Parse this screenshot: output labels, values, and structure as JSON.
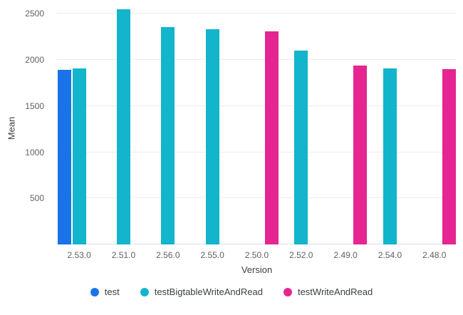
{
  "chart_data": {
    "type": "bar",
    "title": "",
    "xlabel": "Version",
    "ylabel": "Mean",
    "categories": [
      "2.53.0",
      "2.51.0",
      "2.56.0",
      "2.55.0",
      "2.50.0",
      "2.52.0",
      "2.49.0",
      "2.54.0",
      "2.48.0"
    ],
    "series": [
      {
        "name": "test",
        "color": "#1A73E8",
        "values": [
          1890,
          null,
          null,
          null,
          null,
          null,
          null,
          null,
          null
        ]
      },
      {
        "name": "testBigtableWriteAndRead",
        "color": "#12B5CB",
        "values": [
          1910,
          2550,
          2360,
          2330,
          null,
          2100,
          null,
          1905,
          null
        ]
      },
      {
        "name": "testWriteAndRead",
        "color": "#E52592",
        "values": [
          null,
          null,
          null,
          null,
          2310,
          null,
          1940,
          null,
          1900
        ]
      }
    ],
    "yticks": [
      500,
      1000,
      1500,
      2000,
      2500
    ],
    "ylim": [
      0,
      2650
    ],
    "grid": true,
    "legend_position": "bottom"
  },
  "style": {
    "background": "#ffffff",
    "grid_color": "#e9ecef",
    "axis_line_color": "#d8dee8",
    "tick_label_color": "#616161",
    "axis_title_color": "#424242",
    "legend_label_color": "#3c4043"
  }
}
